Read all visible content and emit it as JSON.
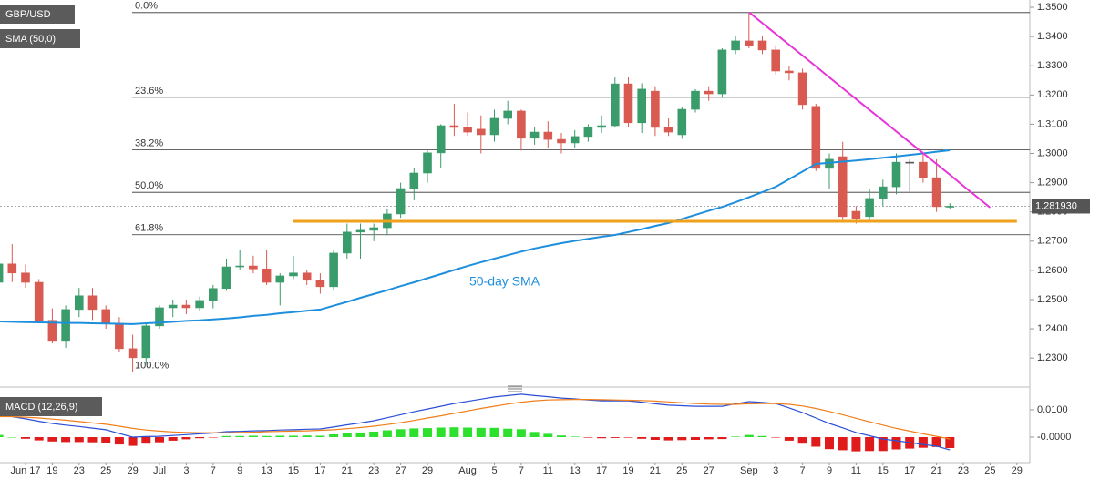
{
  "chart_data": [
    {
      "type": "candlestick",
      "title": "GBP/USD",
      "categories": [
        null,
        null,
        "Jun 17",
        null,
        "19",
        null,
        "23",
        null,
        "25",
        null,
        "29",
        null,
        "Jul",
        null,
        "3",
        null,
        "7",
        null,
        "9",
        null,
        "13",
        null,
        "15",
        null,
        "17",
        null,
        "21",
        null,
        "23",
        null,
        "27",
        null,
        "29",
        null,
        null,
        "Aug",
        null,
        "5",
        null,
        "7",
        null,
        "11",
        null,
        "13",
        null,
        "17",
        null,
        "19",
        null,
        "21",
        null,
        "25",
        null,
        "27",
        null,
        null,
        "Sep",
        null,
        "3",
        null,
        "7",
        null,
        "9",
        null,
        "11",
        null,
        "15",
        null,
        "17",
        null,
        "21",
        null,
        "23",
        null,
        "25",
        null,
        "29"
      ],
      "open": [
        1.2559,
        1.2622,
        1.2591,
        1.2559,
        1.2429,
        1.2357,
        1.2466,
        1.2513,
        1.2466,
        1.2419,
        1.2332,
        1.2301,
        1.241,
        1.2472,
        1.2481,
        1.2472,
        1.2497,
        1.2538,
        1.2612,
        1.2615,
        1.2605,
        1.2559,
        1.2581,
        1.2591,
        1.2566,
        1.2544,
        1.2659,
        1.2731,
        1.2737,
        1.2746,
        1.2793,
        1.288,
        1.2933,
        1.3002,
        1.3095,
        1.3089,
        1.3083,
        1.3064,
        1.312,
        1.3145,
        1.3052,
        1.3073,
        1.3048,
        1.3036,
        1.3058,
        1.3089,
        1.3095,
        1.3238,
        1.3105,
        1.3213,
        1.3089,
        1.3064,
        1.3151,
        1.3213,
        1.3204,
        1.3354,
        1.3385,
        1.3385,
        1.3354,
        1.3282,
        1.3276,
        1.3161,
        1.2949,
        1.2989,
        1.2802,
        1.2784,
        1.2846,
        1.2886,
        1.297,
        1.297,
        1.2917,
        1.2818,
        null,
        null,
        null,
        null,
        null
      ],
      "high": [
        1.269,
        1.269,
        1.262,
        1.257,
        1.247,
        1.248,
        1.254,
        1.254,
        1.248,
        1.244,
        1.238,
        1.242,
        1.248,
        1.25,
        1.25,
        1.251,
        1.255,
        1.264,
        1.267,
        1.265,
        1.267,
        1.259,
        1.265,
        1.26,
        1.259,
        1.267,
        1.276,
        1.276,
        1.276,
        1.281,
        1.29,
        1.295,
        1.301,
        1.31,
        1.317,
        1.314,
        1.313,
        1.315,
        1.318,
        1.315,
        1.309,
        1.311,
        1.307,
        1.308,
        1.31,
        1.313,
        1.326,
        1.326,
        1.324,
        1.323,
        1.312,
        1.316,
        1.322,
        1.323,
        1.336,
        1.34,
        1.3482,
        1.34,
        1.337,
        1.33,
        1.329,
        1.317,
        1.3,
        1.304,
        1.282,
        1.288,
        1.291,
        1.3,
        1.298,
        1.3,
        1.298,
        1.283,
        null,
        null,
        null,
        null,
        null
      ],
      "low": [
        1.25,
        1.256,
        1.254,
        1.242,
        1.235,
        1.2335,
        1.244,
        1.243,
        1.24,
        1.232,
        1.2252,
        1.228,
        1.24,
        1.244,
        1.245,
        1.246,
        1.247,
        1.253,
        1.26,
        1.259,
        1.255,
        1.248,
        1.257,
        1.255,
        1.252,
        1.253,
        1.264,
        1.264,
        1.27,
        1.272,
        1.278,
        1.284,
        1.29,
        1.295,
        1.306,
        1.306,
        1.3,
        1.304,
        1.31,
        1.301,
        1.303,
        1.302,
        1.3,
        1.302,
        1.304,
        1.307,
        1.309,
        1.309,
        1.307,
        1.306,
        1.306,
        1.305,
        1.314,
        1.318,
        1.319,
        1.334,
        1.336,
        1.334,
        1.327,
        1.325,
        1.315,
        1.294,
        1.288,
        1.277,
        1.276,
        1.277,
        1.282,
        1.286,
        1.287,
        1.29,
        1.28,
        1.281,
        null,
        null,
        null,
        null,
        null
      ],
      "close": [
        1.2622,
        1.2591,
        1.2559,
        1.2429,
        1.2357,
        1.2466,
        1.2513,
        1.2466,
        1.2419,
        1.2332,
        1.2301,
        1.241,
        1.2472,
        1.2481,
        1.2472,
        1.2497,
        1.2538,
        1.2612,
        1.2615,
        1.2605,
        1.2559,
        1.2581,
        1.2591,
        1.2566,
        1.2544,
        1.2659,
        1.2731,
        1.2737,
        1.2746,
        1.2793,
        1.288,
        1.2933,
        1.3002,
        1.3095,
        1.3089,
        1.3073,
        1.3064,
        1.312,
        1.3145,
        1.3052,
        1.3073,
        1.3048,
        1.3036,
        1.3058,
        1.3089,
        1.3095,
        1.3238,
        1.3105,
        1.322,
        1.3089,
        1.3073,
        1.3151,
        1.3213,
        1.3204,
        1.3354,
        1.3385,
        1.3369,
        1.3354,
        1.3282,
        1.3276,
        1.3167,
        1.2949,
        1.298,
        1.2784,
        1.2777,
        1.2846,
        1.2886,
        1.297,
        1.297,
        1.2917,
        1.2818,
        1.28193,
        null,
        null,
        null,
        null,
        null
      ],
      "up_color": "#3a9b6b",
      "down_color": "#d85a50",
      "flat_color": "#555555",
      "series": [
        {
          "name": "SMA (50,0)",
          "color": "#1e8fdc",
          "values": [
            1.2425,
            1.2424,
            1.2423,
            1.2422,
            1.2421,
            1.242,
            1.242,
            1.2419,
            1.2418,
            1.2417,
            1.2416,
            1.2419,
            1.2421,
            1.2424,
            1.2427,
            1.2429,
            1.2432,
            1.2435,
            1.2439,
            1.2444,
            1.2448,
            1.2453,
            1.2457,
            1.2462,
            1.2466,
            1.2479,
            1.2492,
            1.2506,
            1.2519,
            1.2532,
            1.2546,
            1.2559,
            1.2573,
            1.2587,
            1.2601,
            1.2615,
            1.2628,
            1.264,
            1.2652,
            1.2664,
            1.2675,
            1.2684,
            1.2693,
            1.2701,
            1.2708,
            1.2715,
            1.2721,
            1.2731,
            1.2741,
            1.2752,
            1.2762,
            1.2776,
            1.279,
            1.2804,
            1.2817,
            1.2833,
            1.285,
            1.2868,
            1.2886,
            1.2912,
            1.2938,
            1.2964,
            1.2968,
            1.2972,
            1.2976,
            1.298,
            1.2985,
            1.299,
            1.2995,
            1.3,
            1.3006,
            1.3011,
            null,
            null,
            null,
            null,
            null
          ]
        }
      ],
      "lines": [
        {
          "color": "#e833d8",
          "values": [
            null,
            null,
            null,
            null,
            null,
            null,
            null,
            null,
            null,
            null,
            null,
            null,
            null,
            null,
            null,
            null,
            null,
            null,
            null,
            null,
            null,
            null,
            null,
            null,
            null,
            null,
            null,
            null,
            null,
            null,
            null,
            null,
            null,
            null,
            null,
            null,
            null,
            null,
            null,
            null,
            null,
            null,
            null,
            null,
            null,
            null,
            null,
            null,
            null,
            null,
            null,
            null,
            null,
            null,
            null,
            null,
            1.3483,
            1.3446,
            1.3409,
            1.3372,
            1.3335,
            1.3298,
            1.326,
            1.3223,
            1.3186,
            1.3149,
            1.3112,
            1.3075,
            1.3038,
            1.3001,
            1.2964,
            1.2927,
            1.2889,
            1.2852,
            1.2815,
            null,
            null
          ]
        },
        {
          "color": "#f0a11c",
          "values": [
            null,
            null,
            null,
            null,
            null,
            null,
            null,
            null,
            null,
            null,
            null,
            null,
            null,
            null,
            null,
            null,
            null,
            null,
            null,
            null,
            null,
            null,
            1.2768,
            1.2768,
            1.2768,
            1.2768,
            1.2768,
            1.2768,
            1.2768,
            1.2768,
            1.2768,
            1.2768,
            1.2768,
            1.2768,
            1.2768,
            1.2768,
            1.2768,
            1.2768,
            1.2768,
            1.2768,
            1.2768,
            1.2768,
            1.2768,
            1.2768,
            1.2768,
            1.2768,
            1.2768,
            1.2768,
            1.2768,
            1.2768,
            1.2768,
            1.2768,
            1.2768,
            1.2768,
            1.2768,
            1.2768,
            1.2768,
            1.2768,
            1.2768,
            1.2768,
            1.2768,
            1.2768,
            1.2768,
            1.2768,
            1.2768,
            1.2768,
            1.2768,
            1.2768,
            1.2768,
            1.2768,
            1.2768,
            1.2768,
            1.2768,
            1.2768,
            1.2768,
            1.2768,
            1.2768
          ]
        }
      ],
      "fib_levels": [
        {
          "label": "0.0%",
          "value": 1.3482
        },
        {
          "label": "23.6%",
          "value": 1.3192
        },
        {
          "label": "38.2%",
          "value": 1.3012
        },
        {
          "label": "50.0%",
          "value": 1.2867
        },
        {
          "label": "61.8%",
          "value": 1.2722
        },
        {
          "label": "100.0%",
          "value": 1.2252
        }
      ],
      "annotation": "50-day SMA",
      "last_price": {
        "value": 1.28193,
        "label": "1.281930"
      },
      "ylim": [
        1.2207,
        1.3525
      ],
      "yticks": [
        {
          "value": 1.23,
          "label": "1.2300"
        },
        {
          "value": 1.24,
          "label": "1.2400"
        },
        {
          "value": 1.25,
          "label": "1.2500"
        },
        {
          "value": 1.26,
          "label": "1.2600"
        },
        {
          "value": 1.27,
          "label": "1.2700"
        },
        {
          "value": 1.28,
          "label": "1.2800"
        },
        {
          "value": 1.29,
          "label": "1.2900"
        },
        {
          "value": 1.3,
          "label": "1.3000"
        },
        {
          "value": 1.31,
          "label": "1.3100"
        },
        {
          "value": 1.32,
          "label": "1.3200"
        },
        {
          "value": 1.33,
          "label": "1.3300"
        },
        {
          "value": 1.34,
          "label": "1.3400"
        },
        {
          "value": 1.35,
          "label": "1.3500"
        }
      ]
    },
    {
      "type": "macd",
      "title": "MACD (12,26,9)",
      "macd": {
        "color": "#2a4fd6",
        "values": [
          0.0083,
          0.0075,
          0.0067,
          0.0058,
          0.005,
          0.0044,
          0.0039,
          0.0033,
          0.0027,
          0.0013,
          0.0,
          0.0002,
          0.0003,
          0.0006,
          0.0009,
          0.0012,
          0.0015,
          0.002,
          0.0021,
          0.0023,
          0.0024,
          0.0026,
          0.0027,
          0.0029,
          0.003,
          0.0037,
          0.0045,
          0.0052,
          0.006,
          0.0071,
          0.0082,
          0.0093,
          0.0103,
          0.0113,
          0.0123,
          0.0131,
          0.0139,
          0.0147,
          0.0152,
          0.0157,
          0.0152,
          0.0148,
          0.0143,
          0.014,
          0.0136,
          0.0133,
          0.0133,
          0.0133,
          0.0128,
          0.0122,
          0.0117,
          0.0115,
          0.0113,
          0.0113,
          0.0113,
          0.0122,
          0.013,
          0.0127,
          0.0123,
          0.0107,
          0.009,
          0.007,
          0.005,
          0.0034,
          0.0017,
          0.0005,
          -0.0007,
          -0.0013,
          -0.002,
          -0.0027,
          -0.0033,
          -0.0047,
          null,
          null,
          null,
          null,
          null
        ]
      },
      "signal": {
        "color": "#f07f1a",
        "values": [
          0.0075,
          0.0075,
          0.0073,
          0.007,
          0.0066,
          0.0062,
          0.0057,
          0.0052,
          0.0047,
          0.004,
          0.0032,
          0.0026,
          0.0022,
          0.0019,
          0.0017,
          0.0016,
          0.0016,
          0.0016,
          0.0017,
          0.0018,
          0.002,
          0.0021,
          0.0022,
          0.0023,
          0.0025,
          0.0027,
          0.0031,
          0.0035,
          0.004,
          0.0046,
          0.0053,
          0.0061,
          0.007,
          0.0078,
          0.0087,
          0.0096,
          0.0105,
          0.0113,
          0.0121,
          0.0128,
          0.0133,
          0.0136,
          0.0137,
          0.0138,
          0.0138,
          0.0137,
          0.0136,
          0.0135,
          0.0134,
          0.0132,
          0.0129,
          0.0126,
          0.0123,
          0.0121,
          0.012,
          0.012,
          0.0122,
          0.0123,
          0.0123,
          0.012,
          0.0114,
          0.0105,
          0.0094,
          0.0082,
          0.0069,
          0.0056,
          0.0044,
          0.0032,
          0.0022,
          0.0012,
          0.0003,
          -0.0007,
          null,
          null,
          null,
          null,
          null
        ]
      },
      "histogram": {
        "up_color": "#2ee02e",
        "down_color": "#e01b1b",
        "values": [
          0.0008,
          0.0,
          -0.0006,
          -0.0012,
          -0.0016,
          -0.0018,
          -0.0018,
          -0.0019,
          -0.002,
          -0.0027,
          -0.0032,
          -0.0024,
          -0.0019,
          -0.0013,
          -0.0008,
          -0.0004,
          -0.0001,
          0.0004,
          0.0004,
          0.0005,
          0.0004,
          0.0005,
          0.0005,
          0.0006,
          0.0005,
          0.001,
          0.0014,
          0.0017,
          0.002,
          0.0025,
          0.0029,
          0.0032,
          0.0033,
          0.0035,
          0.0036,
          0.0035,
          0.0034,
          0.0034,
          0.0031,
          0.0029,
          0.0019,
          0.0012,
          0.0006,
          0.0002,
          -0.0002,
          -0.0004,
          -0.0003,
          -0.0002,
          -0.0006,
          -0.001,
          -0.0012,
          -0.0011,
          -0.001,
          -0.0008,
          -0.0007,
          0.0002,
          0.0008,
          0.0004,
          -0.0001,
          -0.0013,
          -0.0024,
          -0.0035,
          -0.0044,
          -0.0048,
          -0.0052,
          -0.0051,
          -0.0051,
          -0.0045,
          -0.0042,
          -0.0039,
          -0.0036,
          -0.004,
          null,
          null,
          null,
          null,
          null
        ]
      },
      "ylim": [
        -0.0105,
        0.0175
      ],
      "yticks": [
        {
          "value": 0.01,
          "label": "0.0100"
        },
        {
          "value": 0,
          "label": "-0.0000"
        }
      ]
    }
  ]
}
